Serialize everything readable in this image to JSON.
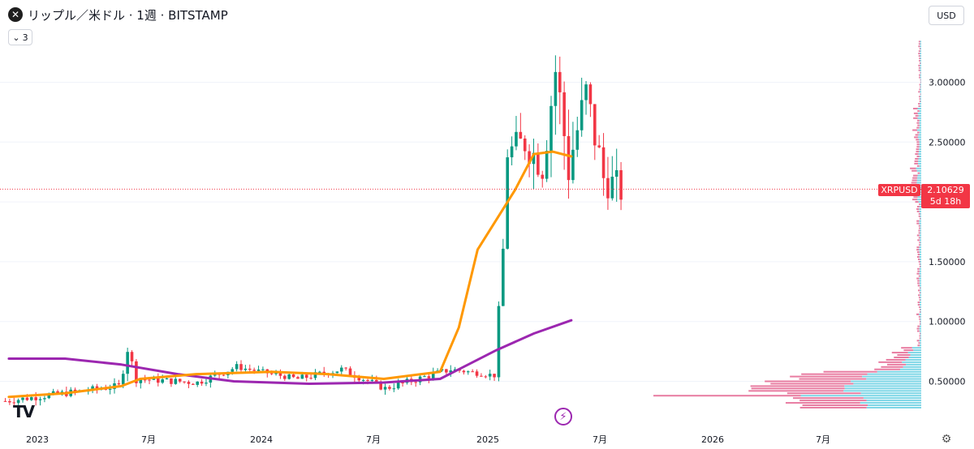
{
  "header": {
    "title": "リップル／米ドル · 1週 · BITSTAMP",
    "indicator_count": "3",
    "currency": "USD"
  },
  "price_tag": {
    "symbol": "XRPUSD",
    "price": "2.10629",
    "countdown": "5d 18h"
  },
  "icons": {
    "logo": "xrp-logo-icon",
    "chevron": "chevron-down-icon",
    "bolt": "lightning-bolt-icon",
    "tv": "tradingview-logo-icon",
    "settings": "gear-icon"
  },
  "chart_data": {
    "type": "candlestick",
    "title": "",
    "y_axis": {
      "ticks": [
        "0.50000",
        "1.00000",
        "1.50000",
        "2.50000",
        "3.00000"
      ],
      "tick_values": [
        0.5,
        1.0,
        1.5,
        2.5,
        3.0
      ],
      "scale": "linear"
    },
    "x_axis": {
      "labels": [
        "2023",
        "7月",
        "2024",
        "7月",
        "2025",
        "7月",
        "2026",
        "7月"
      ]
    },
    "last_price": 2.10629,
    "colors": {
      "up": "#089981",
      "down": "#f23645",
      "ma_fast": "#ff9800",
      "ma_slow": "#9c27b0",
      "vp_up": "#5ccce0",
      "vp_down": "#e25b8a"
    },
    "segments": [
      {
        "n": 27,
        "start": 0.33,
        "end": 0.46,
        "vol": 0.05
      },
      {
        "n": 2,
        "start": 0.46,
        "end": 0.78,
        "vol": 0.1
      },
      {
        "n": 2,
        "start": 0.78,
        "end": 0.52,
        "vol": 0.06
      },
      {
        "n": 14,
        "start": 0.52,
        "end": 0.49,
        "vol": 0.05
      },
      {
        "n": 9,
        "start": 0.49,
        "end": 0.62,
        "vol": 0.05
      },
      {
        "n": 14,
        "start": 0.62,
        "end": 0.52,
        "vol": 0.04
      },
      {
        "n": 10,
        "start": 0.52,
        "end": 0.6,
        "vol": 0.05
      },
      {
        "n": 10,
        "start": 0.6,
        "end": 0.44,
        "vol": 0.05
      },
      {
        "n": 15,
        "start": 0.44,
        "end": 0.6,
        "vol": 0.05
      },
      {
        "n": 10,
        "start": 0.6,
        "end": 0.55,
        "vol": 0.04
      },
      {
        "n": 1,
        "start": 0.55,
        "end": 1.1,
        "vol": 0.05
      },
      {
        "n": 1,
        "start": 1.1,
        "end": 1.6,
        "vol": 0.1
      },
      {
        "n": 1,
        "start": 1.6,
        "end": 2.4,
        "vol": 0.12
      },
      {
        "n": 4,
        "start": 2.4,
        "end": 2.5,
        "vol": 0.25
      },
      {
        "n": 4,
        "start": 2.5,
        "end": 2.3,
        "vol": 0.25
      },
      {
        "n": 3,
        "start": 2.3,
        "end": 3.1,
        "vol": 0.3
      },
      {
        "n": 3,
        "start": 3.1,
        "end": 2.3,
        "vol": 0.4
      },
      {
        "n": 4,
        "start": 2.3,
        "end": 2.9,
        "vol": 0.3
      },
      {
        "n": 4,
        "start": 2.9,
        "end": 2.2,
        "vol": 0.3
      },
      {
        "n": 4,
        "start": 2.2,
        "end": 2.1,
        "vol": 0.25
      }
    ],
    "ma_fast": [
      {
        "x": "2022-12",
        "y": 0.37
      },
      {
        "x": "2023-03",
        "y": 0.4
      },
      {
        "x": "2023-06",
        "y": 0.46
      },
      {
        "x": "2023-07",
        "y": 0.52
      },
      {
        "x": "2023-10",
        "y": 0.56
      },
      {
        "x": "2024-02",
        "y": 0.58
      },
      {
        "x": "2024-05",
        "y": 0.56
      },
      {
        "x": "2024-08",
        "y": 0.52
      },
      {
        "x": "2024-11",
        "y": 0.58
      },
      {
        "x": "2024-12",
        "y": 0.95
      },
      {
        "x": "2025-01",
        "y": 1.6
      },
      {
        "x": "2025-03",
        "y": 2.1
      },
      {
        "x": "2025-04",
        "y": 2.4
      },
      {
        "x": "2025-05",
        "y": 2.42
      },
      {
        "x": "2025-06",
        "y": 2.38
      }
    ],
    "ma_slow": [
      {
        "x": "2022-12",
        "y": 0.69
      },
      {
        "x": "2023-03",
        "y": 0.69
      },
      {
        "x": "2023-06",
        "y": 0.64
      },
      {
        "x": "2023-09",
        "y": 0.56
      },
      {
        "x": "2023-12",
        "y": 0.5
      },
      {
        "x": "2024-04",
        "y": 0.48
      },
      {
        "x": "2024-08",
        "y": 0.49
      },
      {
        "x": "2024-11",
        "y": 0.52
      },
      {
        "x": "2024-12",
        "y": 0.6
      },
      {
        "x": "2025-02",
        "y": 0.76
      },
      {
        "x": "2025-04",
        "y": 0.9
      },
      {
        "x": "2025-06",
        "y": 1.01
      }
    ]
  }
}
